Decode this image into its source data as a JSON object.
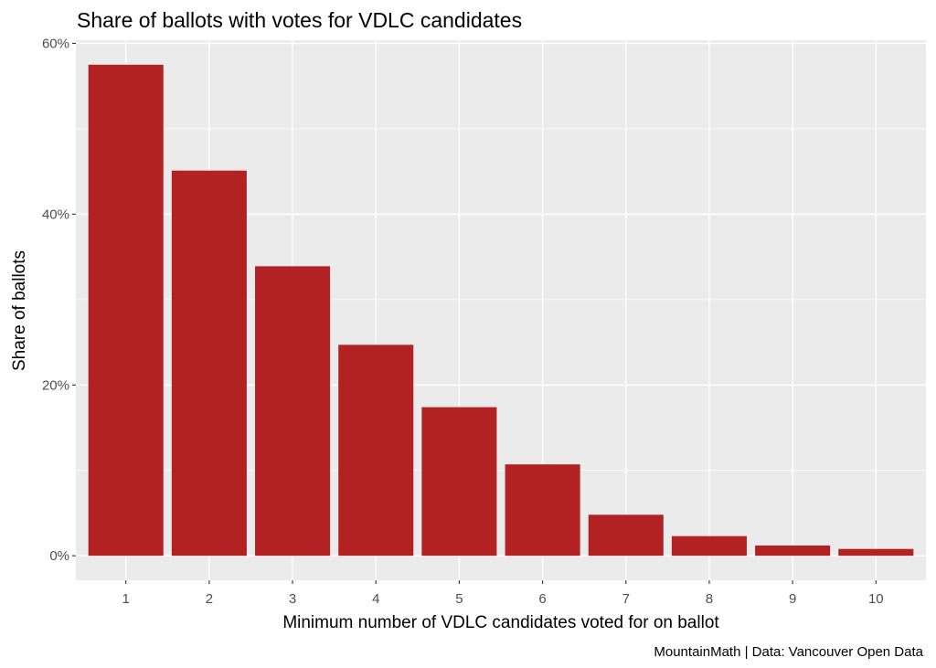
{
  "chart_data": {
    "type": "bar",
    "title": "Share of ballots with votes for VDLC candidates",
    "xlabel": "Minimum number of VDLC candidates voted for on ballot",
    "ylabel": "Share of ballots",
    "caption": "MountainMath | Data: Vancouver Open Data",
    "categories": [
      "1",
      "2",
      "3",
      "4",
      "5",
      "6",
      "7",
      "8",
      "9",
      "10"
    ],
    "values": [
      0.575,
      0.451,
      0.339,
      0.247,
      0.174,
      0.107,
      0.048,
      0.023,
      0.012,
      0.008
    ],
    "ylim": [
      -0.0287,
      0.6037
    ],
    "y_ticks": [
      0,
      0.2,
      0.4,
      0.6
    ],
    "y_tick_labels": [
      "0%",
      "20%",
      "40%",
      "60%"
    ],
    "grid": true,
    "legend": "none",
    "colors": {
      "bar": "#b22222",
      "panel": "#ebebeb",
      "grid_major": "#ffffff",
      "tick_text": "#4d4d4d",
      "tick_mark": "#333333"
    }
  }
}
